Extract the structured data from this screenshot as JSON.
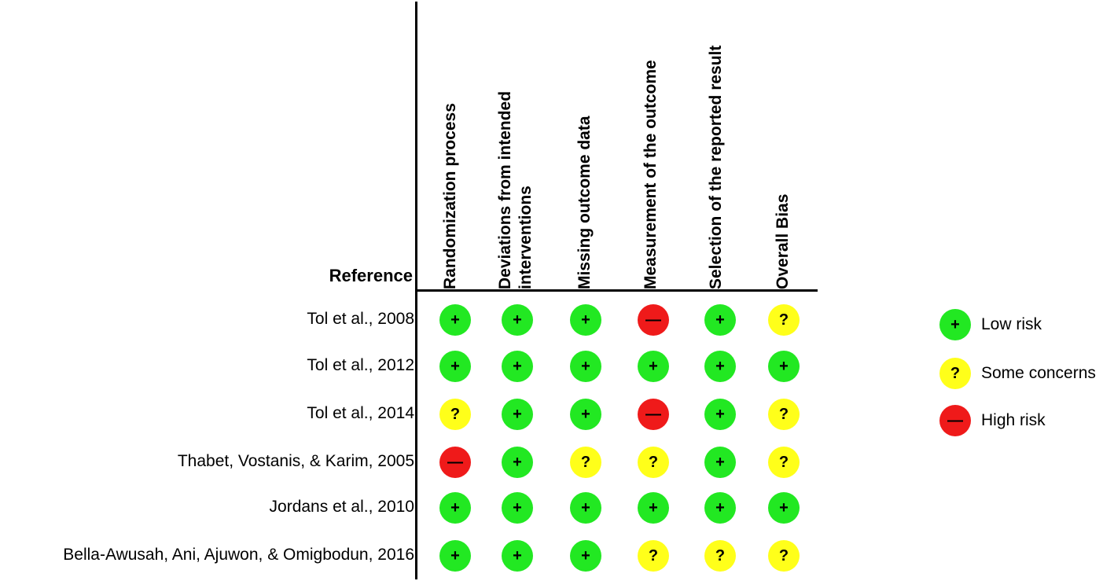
{
  "table": {
    "reference_header": "Reference",
    "columns": [
      "Randomization process",
      "Deviations from intended\ninterventions",
      "Missing outcome data",
      "Measurement of the outcome",
      "Selection of the reported result",
      "Overall Bias"
    ],
    "rows": [
      {
        "reference": "Tol et al., 2008",
        "ratings": [
          "low",
          "low",
          "low",
          "high",
          "low",
          "some"
        ]
      },
      {
        "reference": "Tol et al., 2012",
        "ratings": [
          "low",
          "low",
          "low",
          "low",
          "low",
          "low"
        ]
      },
      {
        "reference": "Tol et al., 2014",
        "ratings": [
          "some",
          "low",
          "low",
          "high",
          "low",
          "some"
        ]
      },
      {
        "reference": "Thabet, Vostanis, & Karim, 2005",
        "ratings": [
          "high",
          "low",
          "some",
          "some",
          "low",
          "some"
        ]
      },
      {
        "reference": "Jordans et al., 2010",
        "ratings": [
          "low",
          "low",
          "low",
          "low",
          "low",
          "low"
        ]
      },
      {
        "reference": "Bella-Awusah, Ani, Ajuwon, & Omigbodun, 2016",
        "ratings": [
          "low",
          "low",
          "low",
          "some",
          "some",
          "some"
        ]
      }
    ]
  },
  "symbols": {
    "low": "+",
    "some": "?",
    "high": "—"
  },
  "legend": [
    {
      "key": "low",
      "label": "Low risk"
    },
    {
      "key": "some",
      "label": "Some concerns"
    },
    {
      "key": "high",
      "label": "High risk"
    }
  ],
  "colors": {
    "low": "#22e822",
    "some": "#ffff1a",
    "high": "#ef1a1a",
    "lines": "#000000"
  }
}
